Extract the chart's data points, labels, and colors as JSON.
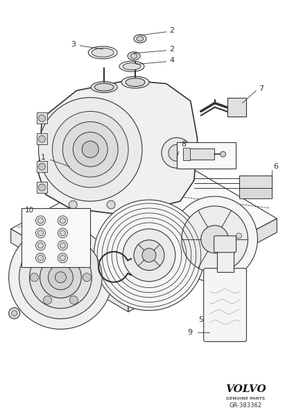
{
  "bg_color": "#ffffff",
  "line_color": "#333333",
  "light_gray": "#aaaaaa",
  "fill_light": "#f0f0f0",
  "fill_mid": "#e0e0e0",
  "fill_dark": "#c8c8c8",
  "volvo_text": "VOLVO",
  "genuine_parts": "GENUINE PARTS",
  "part_number": "GR-383362",
  "figsize": [
    4.11,
    6.01
  ],
  "dpi": 100
}
